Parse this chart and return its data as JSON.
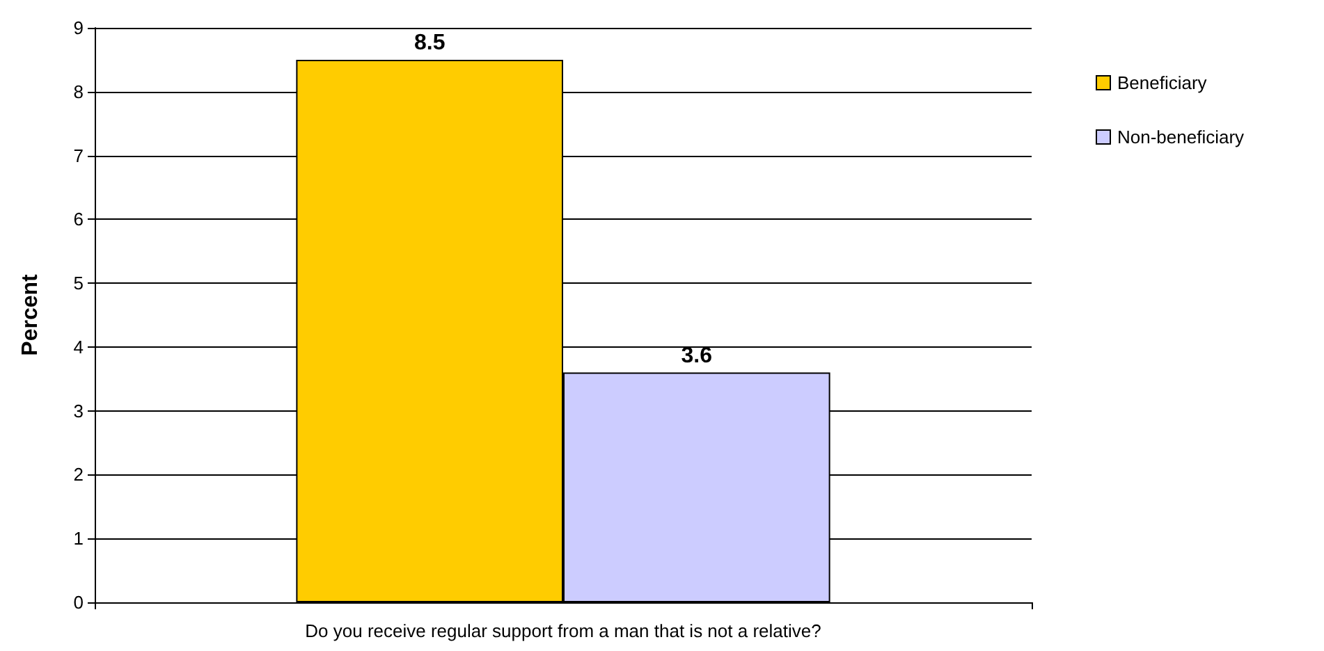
{
  "chart_data": {
    "type": "bar",
    "ylabel": "Percent",
    "categories": [
      "Do you receive regular support from a man that is not a relative?"
    ],
    "series": [
      {
        "name": "Beneficiary",
        "color": "#ffcc00",
        "values": [
          8.5
        ]
      },
      {
        "name": "Non-beneficiary",
        "color": "#ccccff",
        "values": [
          3.6
        ]
      }
    ],
    "ylim": [
      0,
      9
    ],
    "yticks": [
      0,
      1,
      2,
      3,
      4,
      5,
      6,
      7,
      8,
      9
    ],
    "grid": "y",
    "legend": "top right",
    "data_labels": true
  }
}
